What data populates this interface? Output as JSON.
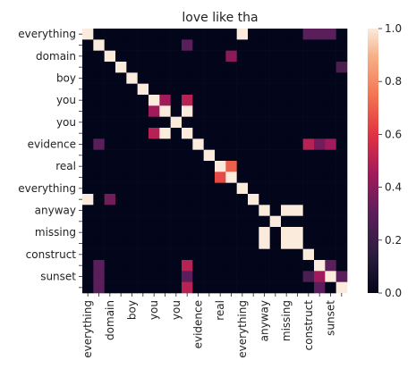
{
  "chart_data": {
    "type": "heatmap",
    "title": "love like tha",
    "xlabel": "",
    "ylabel": "",
    "labels": [
      "everything",
      "",
      "domain",
      "",
      "boy",
      "",
      "you",
      "",
      "you",
      "",
      "evidence",
      "",
      "real",
      "",
      "everything",
      "",
      "anyway",
      "",
      "missing",
      "",
      "construct",
      "",
      "sunset",
      ""
    ],
    "colorbar": {
      "range": [
        0.0,
        1.0
      ],
      "ticks": [
        "0.0",
        "0.2",
        "0.4",
        "0.6",
        "0.8",
        "1.0"
      ]
    },
    "colormap": "rocket",
    "matrix": [
      [
        1,
        0,
        0,
        0,
        0,
        0,
        0,
        0,
        0,
        0,
        0,
        0,
        0,
        0,
        1,
        0,
        0,
        0,
        0,
        0,
        0.3,
        0.3,
        0.3,
        0
      ],
      [
        0,
        1,
        0,
        0,
        0,
        0,
        0,
        0,
        0,
        0.3,
        0,
        0,
        0,
        0,
        0,
        0,
        0,
        0,
        0,
        0,
        0,
        0,
        0,
        0
      ],
      [
        0,
        0,
        1,
        0,
        0,
        0,
        0,
        0,
        0,
        0,
        0,
        0,
        0,
        0.4,
        0,
        0,
        0,
        0,
        0,
        0,
        0,
        0,
        0,
        0
      ],
      [
        0,
        0,
        0,
        1,
        0,
        0,
        0,
        0,
        0,
        0,
        0,
        0,
        0,
        0,
        0,
        0,
        0,
        0,
        0,
        0,
        0,
        0,
        0,
        0.25
      ],
      [
        0,
        0,
        0,
        0,
        1,
        0,
        0,
        0,
        0,
        0,
        0,
        0,
        0,
        0,
        0,
        0,
        0,
        0,
        0,
        0,
        0,
        0,
        0,
        0
      ],
      [
        0,
        0,
        0,
        0,
        0,
        1,
        0,
        0,
        0,
        0,
        0,
        0,
        0,
        0,
        0,
        0,
        0,
        0,
        0,
        0,
        0,
        0,
        0,
        0
      ],
      [
        0,
        0,
        0,
        0,
        0,
        0,
        1,
        0.45,
        0,
        0.5,
        0,
        0,
        0,
        0,
        0,
        0,
        0,
        0,
        0,
        0,
        0,
        0,
        0,
        0
      ],
      [
        0,
        0,
        0,
        0,
        0,
        0,
        0.45,
        1,
        0,
        1,
        0,
        0,
        0,
        0,
        0,
        0,
        0,
        0,
        0,
        0,
        0,
        0,
        0,
        0
      ],
      [
        0,
        0,
        0,
        0,
        0,
        0,
        0,
        0,
        1,
        0,
        0,
        0,
        0,
        0,
        0,
        0,
        0,
        0,
        0,
        0,
        0,
        0,
        0,
        0
      ],
      [
        0,
        0,
        0,
        0,
        0,
        0,
        0.5,
        1,
        0,
        1,
        0,
        0,
        0,
        0,
        0,
        0,
        0,
        0,
        0,
        0,
        0,
        0,
        0,
        0
      ],
      [
        0,
        0.3,
        0,
        0,
        0,
        0,
        0,
        0,
        0,
        0,
        1,
        0,
        0,
        0,
        0,
        0,
        0,
        0,
        0,
        0,
        0.5,
        0.35,
        0.45,
        0
      ],
      [
        0,
        0,
        0,
        0,
        0,
        0,
        0,
        0,
        0,
        0,
        0,
        1,
        0,
        0,
        0,
        0,
        0,
        0,
        0,
        0,
        0,
        0,
        0,
        0
      ],
      [
        0,
        0,
        0,
        0,
        0,
        0,
        0,
        0,
        0,
        0,
        0,
        0,
        1,
        0.7,
        0,
        0,
        0,
        0,
        0,
        0,
        0,
        0,
        0,
        0
      ],
      [
        0,
        0,
        0,
        0,
        0,
        0,
        0,
        0,
        0,
        0,
        0,
        0,
        0.65,
        1,
        0,
        0,
        0,
        0,
        0,
        0,
        0,
        0,
        0,
        0
      ],
      [
        0,
        0,
        0,
        0,
        0,
        0,
        0,
        0,
        0,
        0,
        0,
        0,
        0,
        0,
        1,
        0,
        0,
        0,
        0,
        0,
        0,
        0,
        0,
        0
      ],
      [
        1,
        0,
        0.35,
        0,
        0,
        0,
        0,
        0,
        0,
        0,
        0,
        0,
        0,
        0,
        0,
        1,
        0,
        0,
        0,
        0,
        0,
        0,
        0,
        0
      ],
      [
        0,
        0,
        0,
        0,
        0,
        0,
        0,
        0,
        0,
        0,
        0,
        0,
        0,
        0,
        0,
        0,
        1,
        0,
        1,
        1,
        0,
        0,
        0,
        0
      ],
      [
        0,
        0,
        0,
        0,
        0,
        0,
        0,
        0,
        0,
        0,
        0,
        0,
        0,
        0,
        0,
        0,
        0,
        1,
        0,
        0,
        0,
        0,
        0,
        0
      ],
      [
        0,
        0,
        0,
        0,
        0,
        0,
        0,
        0,
        0,
        0,
        0,
        0,
        0,
        0,
        0,
        0,
        1,
        0,
        1,
        1,
        0,
        0,
        0,
        0
      ],
      [
        0,
        0,
        0,
        0,
        0,
        0,
        0,
        0,
        0,
        0,
        0,
        0,
        0,
        0,
        0,
        0,
        1,
        0,
        1,
        1,
        0,
        0,
        0,
        0
      ],
      [
        0,
        0,
        0,
        0,
        0,
        0,
        0,
        0,
        0,
        0,
        0,
        0,
        0,
        0,
        0,
        0,
        0,
        0,
        0,
        0,
        1,
        0,
        0,
        0
      ],
      [
        0,
        0.3,
        0,
        0,
        0,
        0,
        0,
        0,
        0,
        0.5,
        0,
        0,
        0,
        0,
        0,
        0,
        0,
        0,
        0,
        0,
        0,
        1,
        0.3,
        0
      ],
      [
        0,
        0.3,
        0,
        0,
        0,
        0,
        0,
        0,
        0,
        0.3,
        0,
        0,
        0,
        0,
        0,
        0,
        0,
        0,
        0,
        0,
        0.25,
        0.45,
        1,
        0.3
      ],
      [
        0,
        0.3,
        0,
        0,
        0,
        0,
        0,
        0,
        0,
        0.5,
        0,
        0,
        0,
        0,
        0,
        0,
        0,
        0,
        0,
        0,
        0,
        0.3,
        0,
        1
      ]
    ]
  }
}
